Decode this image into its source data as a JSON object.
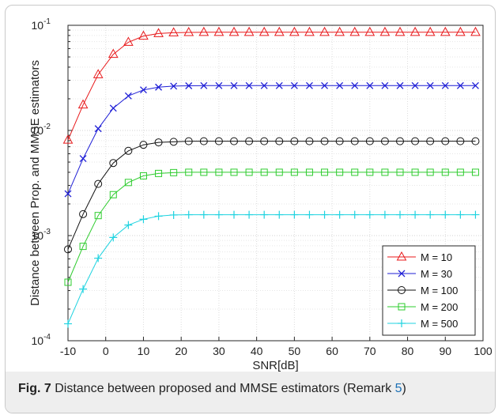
{
  "caption": {
    "label": "Fig. 7",
    "text": " Distance between proposed and MMSE estimators (Remark ",
    "ref": "5",
    "close": ")"
  },
  "chart_data": {
    "type": "line",
    "xlabel": "SNR[dB]",
    "ylabel": "Distance between Prop. and MMSE estimators",
    "xlim": [
      -10,
      100
    ],
    "ylim": [
      0.0001,
      0.1
    ],
    "yscale": "log",
    "grid": true,
    "legend_position": "bottom-right",
    "x_ticks": [
      -10,
      0,
      10,
      20,
      30,
      40,
      50,
      60,
      70,
      80,
      90,
      100
    ],
    "y_ticks": [
      {
        "value": 0.0001,
        "base": "10",
        "exp": "-4"
      },
      {
        "value": 0.001,
        "base": "10",
        "exp": "-3"
      },
      {
        "value": 0.01,
        "base": "10",
        "exp": "-2"
      },
      {
        "value": 0.1,
        "base": "10",
        "exp": "-1"
      }
    ],
    "x": [
      -10,
      -6,
      -2,
      2,
      6,
      10,
      14,
      18,
      22,
      26,
      30,
      34,
      38,
      42,
      46,
      50,
      54,
      58,
      62,
      66,
      70,
      74,
      78,
      82,
      86,
      90,
      94,
      98
    ],
    "series": [
      {
        "name": "M = 10",
        "color": "#e8191b",
        "marker": "triangle",
        "values": [
          0.0081,
          0.0175,
          0.034,
          0.053,
          0.069,
          0.079,
          0.0835,
          0.085,
          0.0855,
          0.0858,
          0.0858,
          0.0858,
          0.0858,
          0.0858,
          0.0858,
          0.0858,
          0.0858,
          0.0858,
          0.0858,
          0.0858,
          0.0858,
          0.0858,
          0.0858,
          0.0858,
          0.0858,
          0.0858,
          0.0858,
          0.0858
        ]
      },
      {
        "name": "M = 30",
        "color": "#1f1fd6",
        "marker": "x",
        "values": [
          0.0025,
          0.0054,
          0.0104,
          0.0163,
          0.0213,
          0.0243,
          0.0258,
          0.0264,
          0.0266,
          0.0267,
          0.0267,
          0.0267,
          0.0267,
          0.0267,
          0.0267,
          0.0267,
          0.0267,
          0.0267,
          0.0267,
          0.0267,
          0.0267,
          0.0267,
          0.0267,
          0.0267,
          0.0267,
          0.0267,
          0.0267,
          0.0267
        ]
      },
      {
        "name": "M = 100",
        "color": "#111111",
        "marker": "circle",
        "values": [
          0.00074,
          0.0016,
          0.0031,
          0.0049,
          0.0064,
          0.0073,
          0.0077,
          0.0078,
          0.0079,
          0.0079,
          0.0079,
          0.0079,
          0.0079,
          0.0079,
          0.0079,
          0.0079,
          0.0079,
          0.0079,
          0.0079,
          0.0079,
          0.0079,
          0.0079,
          0.0079,
          0.0079,
          0.0079,
          0.0079,
          0.0079,
          0.0079
        ]
      },
      {
        "name": "M = 200",
        "color": "#2ecc2e",
        "marker": "square",
        "values": [
          0.00036,
          0.00079,
          0.00155,
          0.00245,
          0.0032,
          0.0037,
          0.0039,
          0.00397,
          0.004,
          0.004,
          0.004,
          0.004,
          0.004,
          0.004,
          0.004,
          0.004,
          0.004,
          0.004,
          0.004,
          0.004,
          0.004,
          0.004,
          0.004,
          0.004,
          0.004,
          0.004,
          0.004,
          0.004
        ]
      },
      {
        "name": "M = 500",
        "color": "#1fd3e0",
        "marker": "plus",
        "values": [
          0.000145,
          0.00031,
          0.00061,
          0.00096,
          0.00126,
          0.00143,
          0.00153,
          0.00157,
          0.00158,
          0.00158,
          0.00158,
          0.00158,
          0.00158,
          0.00158,
          0.00158,
          0.00158,
          0.00158,
          0.00158,
          0.00158,
          0.00158,
          0.00158,
          0.00158,
          0.00158,
          0.00158,
          0.00158,
          0.00158,
          0.00158,
          0.00158
        ]
      }
    ]
  }
}
